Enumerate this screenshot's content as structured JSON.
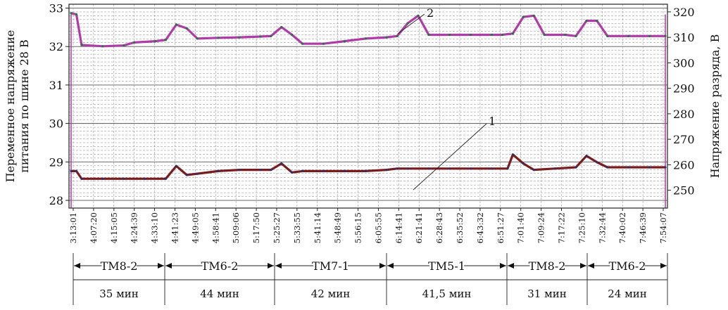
{
  "chart_data": {
    "type": "line",
    "ylabel_left": "Переменное напряжение питания по шине 28 В",
    "ylabel_right": "Напряжение разряда, В",
    "ylim_left": [
      27.8,
      33.1
    ],
    "ylim_right": [
      243,
      323
    ],
    "yticks_left": [
      "33",
      "32",
      "31",
      "30",
      "29",
      "28"
    ],
    "yticks_left_values": [
      33,
      32,
      31,
      30,
      29,
      28
    ],
    "yticks_right": [
      "320",
      "310",
      "300",
      "290",
      "280",
      "270",
      "260",
      "250"
    ],
    "yticks_right_values": [
      320,
      310,
      300,
      290,
      280,
      270,
      260,
      250
    ],
    "x_ticks": [
      "3:13:01",
      "4:07:20",
      "4:15:05",
      "4:24:39",
      "4:33:10",
      "4:41:23",
      "4:49:05",
      "4:58:41",
      "5:09:06",
      "5:17:50",
      "5:25:27",
      "5:33:55",
      "5:41:14",
      "5:48:49",
      "5:56:15",
      "6:05:55",
      "6:14:41",
      "6:21:41",
      "6:28:43",
      "6:35:52",
      "6:43:32",
      "6:51:27",
      "7:01:40",
      "7:09:24",
      "7:17:22",
      "7:25:10",
      "7:32:44",
      "7:40:02",
      "7:46:39",
      "7:54:07"
    ],
    "grid": true,
    "series": [
      {
        "name": "2",
        "axis": "right",
        "color": "#b03aa8",
        "points": [
          [
            0,
            319.5
          ],
          [
            0.5,
            319
          ],
          [
            1,
            307
          ],
          [
            3,
            306.5
          ],
          [
            5,
            306.8
          ],
          [
            6,
            308
          ],
          [
            8,
            308.5
          ],
          [
            9,
            309
          ],
          [
            10,
            315
          ],
          [
            11,
            313.5
          ],
          [
            12,
            309.5
          ],
          [
            14,
            309.8
          ],
          [
            16,
            310
          ],
          [
            18,
            310.3
          ],
          [
            19,
            310.5
          ],
          [
            20,
            314
          ],
          [
            21,
            311
          ],
          [
            22,
            307.5
          ],
          [
            24,
            307.5
          ],
          [
            26,
            308.5
          ],
          [
            28,
            309.5
          ],
          [
            30,
            310
          ],
          [
            31,
            310.5
          ],
          [
            32,
            315.5
          ],
          [
            33,
            318.5
          ],
          [
            34,
            311
          ],
          [
            36,
            311
          ],
          [
            38,
            311
          ],
          [
            40,
            311
          ],
          [
            41,
            311
          ],
          [
            42,
            311.5
          ],
          [
            43,
            318
          ],
          [
            44,
            318.5
          ],
          [
            45,
            311
          ],
          [
            47,
            311
          ],
          [
            48,
            310.5
          ],
          [
            49,
            316.5
          ],
          [
            50,
            316.5
          ],
          [
            51,
            310.5
          ],
          [
            53,
            310.5
          ],
          [
            55,
            310.5
          ],
          [
            56.5,
            310.5
          ]
        ]
      },
      {
        "name": "1",
        "axis": "right",
        "color": "#7a1c1c",
        "points": [
          [
            0,
            257.5
          ],
          [
            0.5,
            257.5
          ],
          [
            1,
            254.5
          ],
          [
            3,
            254.5
          ],
          [
            5,
            254.5
          ],
          [
            7,
            254.5
          ],
          [
            9,
            254.5
          ],
          [
            10,
            259.5
          ],
          [
            11,
            256
          ],
          [
            12,
            256.5
          ],
          [
            14,
            257.5
          ],
          [
            16,
            258
          ],
          [
            18,
            258
          ],
          [
            19,
            258
          ],
          [
            20,
            260.5
          ],
          [
            21,
            257
          ],
          [
            22,
            257.5
          ],
          [
            24,
            257.5
          ],
          [
            26,
            257.5
          ],
          [
            28,
            257.5
          ],
          [
            30,
            258
          ],
          [
            31,
            258.5
          ],
          [
            32,
            258.5
          ],
          [
            34,
            258.5
          ],
          [
            36,
            258.5
          ],
          [
            38,
            258.5
          ],
          [
            40,
            258.5
          ],
          [
            41.5,
            258.5
          ],
          [
            42,
            264
          ],
          [
            43,
            260.5
          ],
          [
            44,
            258
          ],
          [
            46,
            258.5
          ],
          [
            48,
            259
          ],
          [
            49,
            263.5
          ],
          [
            50,
            261
          ],
          [
            51,
            259
          ],
          [
            53,
            259
          ],
          [
            55,
            259
          ],
          [
            56.5,
            259
          ]
        ]
      }
    ],
    "callouts": [
      {
        "label": "2",
        "series": "2"
      },
      {
        "label": "1",
        "series": "1"
      }
    ],
    "segments": [
      {
        "name": "ТМ8-2",
        "duration": "35 мин"
      },
      {
        "name": "ТМ6-2",
        "duration": "44 мин"
      },
      {
        "name": "ТМ7-1",
        "duration": "42 мин"
      },
      {
        "name": "ТМ5-1",
        "duration": "41,5 мин"
      },
      {
        "name": "ТМ8-2",
        "duration": "31 мин"
      },
      {
        "name": "ТМ6-2",
        "duration": "24 мин"
      }
    ]
  }
}
